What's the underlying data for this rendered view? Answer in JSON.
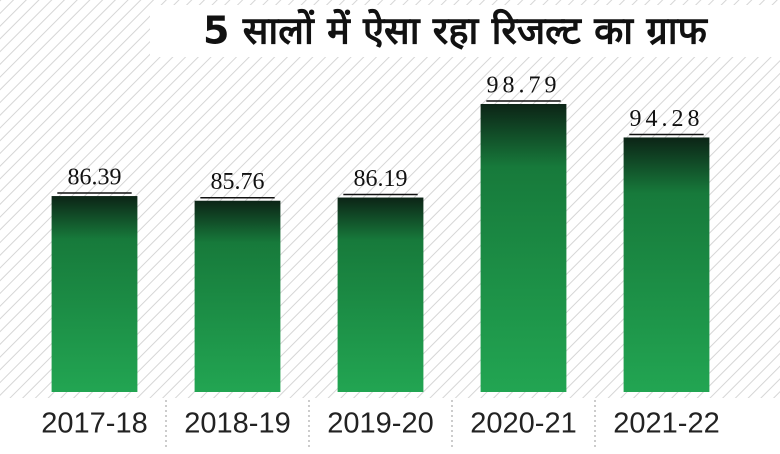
{
  "chart_data": {
    "type": "bar",
    "title": "5 सालों में ऐसा रहा रिजल्ट का ग्राफ",
    "categories": [
      "2017-18",
      "2018-19",
      "2019-20",
      "2020-21",
      "2021-22"
    ],
    "values": [
      86.39,
      85.76,
      86.19,
      98.79,
      94.28
    ],
    "color": "#1f9a4a",
    "ylim": [
      60,
      100
    ]
  }
}
